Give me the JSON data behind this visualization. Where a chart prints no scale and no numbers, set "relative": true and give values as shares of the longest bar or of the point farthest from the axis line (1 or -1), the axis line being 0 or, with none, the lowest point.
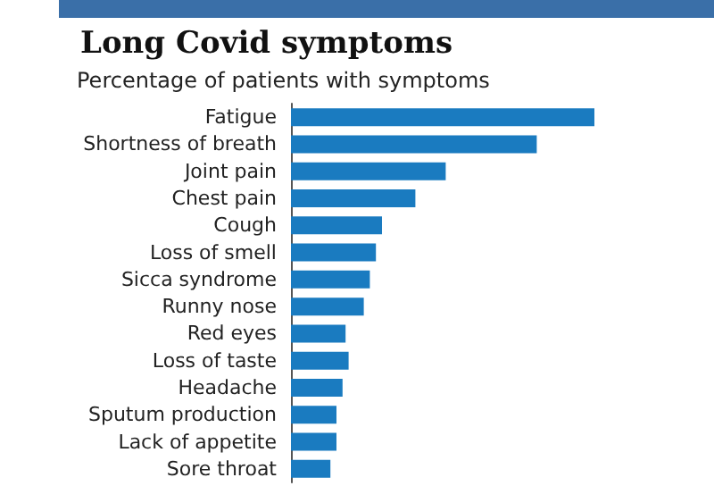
{
  "chart_data": {
    "type": "bar",
    "orientation": "horizontal",
    "relative": true,
    "title": "Long Covid symptoms",
    "subtitle": "Percentage of patients with symptoms",
    "categories": [
      "Fatigue",
      "Shortness of breath",
      "Joint pain",
      "Chest pain",
      "Cough",
      "Loss of smell",
      "Sicca syndrome",
      "Runny nose",
      "Red eyes",
      "Loss of taste",
      "Headache",
      "Sputum production",
      "Lack of appetite",
      "Sore throat"
    ],
    "values": [
      1,
      0.81,
      0.51,
      0.41,
      0.3,
      0.28,
      0.26,
      0.24,
      0.18,
      0.19,
      0.17,
      0.15,
      0.15,
      0.13
    ],
    "color": "#1a7bc0"
  }
}
